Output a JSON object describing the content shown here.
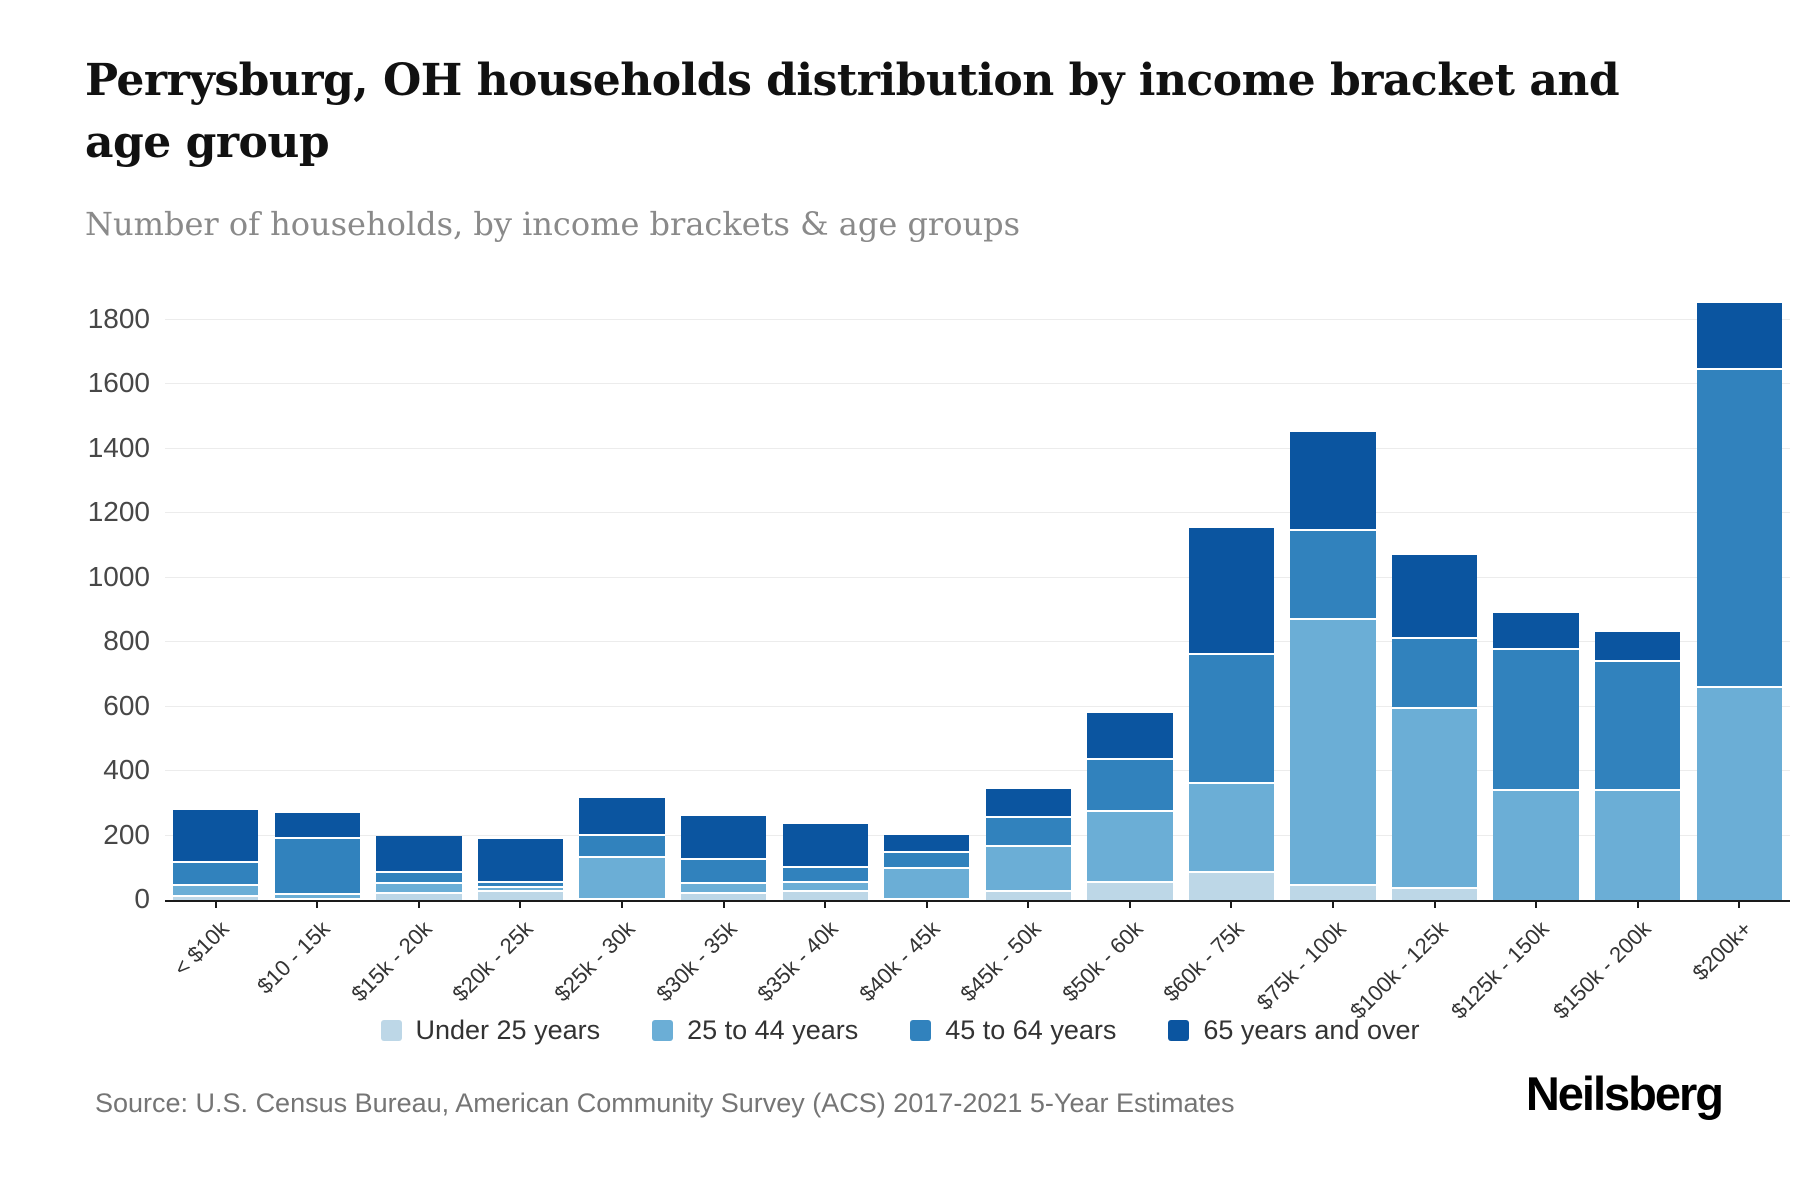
{
  "header": {
    "title": "Perrysburg, OH households distribution by income bracket and age group",
    "subtitle": "Number of households, by income brackets & age groups"
  },
  "chart_data": {
    "type": "bar",
    "stacked": true,
    "title": "Perrysburg, OH households distribution by income bracket and age group",
    "subtitle": "Number of households, by income brackets & age groups",
    "categories": [
      "< $10k",
      "$10 - 15k",
      "$15k - 20k",
      "$20k - 25k",
      "$25k - 30k",
      "$30k - 35k",
      "$35k - 40k",
      "$40k - 45k",
      "$45k - 50k",
      "$50k - 60k",
      "$60k - 75k",
      "$75k - 100k",
      "$100k - 125k",
      "$125k - 150k",
      "$150k - 200k",
      "$200k+"
    ],
    "series": [
      {
        "name": "Under 25 years",
        "color": "#bdd7e7",
        "values": [
          15,
          5,
          25,
          30,
          5,
          25,
          30,
          5,
          30,
          60,
          90,
          50,
          40,
          0,
          0,
          0
        ]
      },
      {
        "name": "25 to 44 years",
        "color": "#6baed6",
        "values": [
          35,
          15,
          30,
          15,
          130,
          30,
          30,
          95,
          140,
          220,
          275,
          825,
          560,
          345,
          345,
          665
        ]
      },
      {
        "name": "45 to 64 years",
        "color": "#3182bd",
        "values": [
          70,
          175,
          35,
          15,
          70,
          75,
          45,
          50,
          90,
          160,
          400,
          275,
          215,
          435,
          400,
          985
        ]
      },
      {
        "name": "65 years and over",
        "color": "#0b55a0",
        "values": [
          160,
          75,
          110,
          130,
          110,
          130,
          130,
          50,
          85,
          140,
          390,
          300,
          255,
          110,
          85,
          200
        ]
      }
    ],
    "totals": [
      280,
      270,
      200,
      190,
      315,
      260,
      235,
      200,
      345,
      580,
      1155,
      1450,
      1070,
      890,
      830,
      1850
    ],
    "ylabel": "",
    "xlabel": "",
    "ylim": [
      0,
      2000
    ],
    "yticks": [
      0,
      200,
      400,
      600,
      800,
      1000,
      1200,
      1400,
      1600,
      1800
    ],
    "grid": "horizontal",
    "legend_position": "bottom"
  },
  "footer": {
    "source": "Source: U.S. Census Bureau, American Community Survey (ACS) 2017-2021 5-Year Estimates",
    "logo": "Neilsberg"
  }
}
